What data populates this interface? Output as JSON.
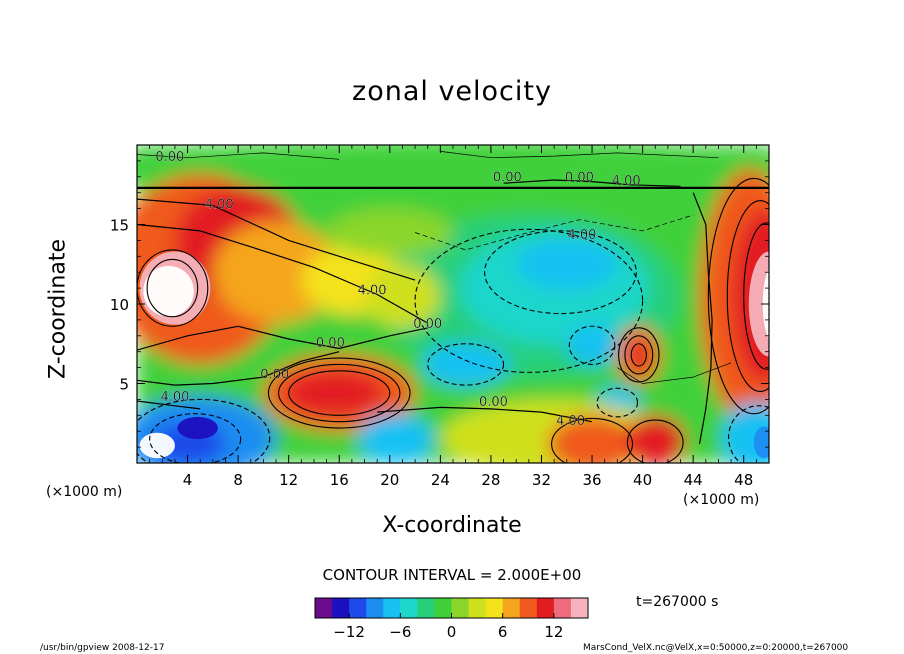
{
  "chart_data": {
    "type": "heatmap",
    "title": "zonal velocity",
    "xlabel": "X-coordinate",
    "ylabel": "Z-coordinate",
    "x_unit_label": "(×1000 m)",
    "z_unit_label": "(×1000 m)",
    "xlim": [
      0,
      50
    ],
    "ylim": [
      0,
      20
    ],
    "x_ticks": [
      "4",
      "8",
      "12",
      "16",
      "20",
      "24",
      "28",
      "32",
      "36",
      "40",
      "44",
      "48"
    ],
    "y_ticks": [
      "5",
      "10",
      "15"
    ],
    "contour_interval": "CONTOUR INTERVAL = 2.000E+00",
    "time_label": "t=267000 s",
    "colorbar": {
      "range": [
        -16,
        16
      ],
      "tick_labels": [
        "−12",
        "−6",
        "0",
        "6",
        "12"
      ],
      "tick_values": [
        -12,
        -6,
        0,
        6,
        12
      ],
      "colors": [
        "#6a0a8c",
        "#1c0fbf",
        "#1f49ea",
        "#1d8df2",
        "#19c1f3",
        "#1fd6cb",
        "#27cf79",
        "#3fd03a",
        "#8bd62b",
        "#cfe01f",
        "#f4e21a",
        "#f4a51c",
        "#f05a1f",
        "#e21d22",
        "#ef6c7c",
        "#f6b3bd"
      ]
    },
    "contour_labels": [
      {
        "text": "0.00",
        "x": 2.6,
        "z": 19.0
      },
      {
        "text": "4.00",
        "x": 6.5,
        "z": 16.0
      },
      {
        "text": "0.00",
        "x": 29.3,
        "z": 17.7
      },
      {
        "text": "0.00",
        "x": 35.0,
        "z": 17.7
      },
      {
        "text": "4.00",
        "x": 38.7,
        "z": 17.5
      },
      {
        "text": "4.00",
        "x": 35.2,
        "z": 14.1
      },
      {
        "text": "4.00",
        "x": 18.6,
        "z": 10.6
      },
      {
        "text": "0.00",
        "x": 23.0,
        "z": 8.5
      },
      {
        "text": "0.00",
        "x": 15.3,
        "z": 7.3
      },
      {
        "text": "0.00",
        "x": 10.9,
        "z": 5.3
      },
      {
        "text": "4.00",
        "x": 3.0,
        "z": 3.9
      },
      {
        "text": "0.00",
        "x": 28.2,
        "z": 3.6
      },
      {
        "text": "4.00",
        "x": 34.3,
        "z": 2.4
      }
    ],
    "grid": false,
    "legend": "bottom"
  },
  "footer": {
    "left": "/usr/bin/gpview  2008-12-17",
    "right": "MarsCond_VelX.nc@VelX,x=0:50000,z=0:20000,t=267000"
  }
}
